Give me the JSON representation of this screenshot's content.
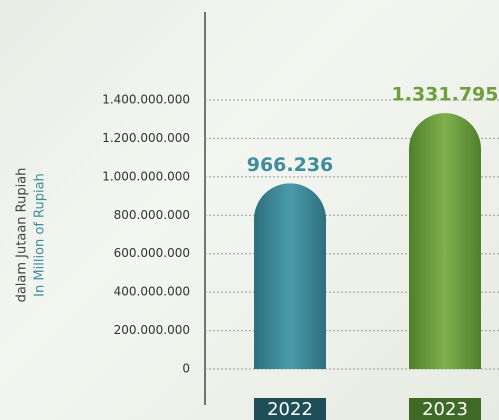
{
  "chart_data": {
    "type": "bar",
    "y_labels": [
      "dalam Jutaan Rupiah",
      "In Million of Rupiah"
    ],
    "categories": [
      "2022",
      "2023"
    ],
    "values": [
      966236000,
      1331795000
    ],
    "value_labels": [
      "966.236",
      "1.331.795"
    ],
    "colors": [
      "#3f8d9c",
      "#6e9e3e"
    ],
    "ylim": [
      0,
      1400000000
    ],
    "yticks": [
      0,
      {
        "value": 200000000,
        "label": "200.000.000"
      },
      {
        "value": 400000000,
        "label": "400.000.000"
      },
      {
        "value": 600000000,
        "label": "600.000.000"
      },
      {
        "value": 800000000,
        "label": "800.000.000"
      },
      {
        "value": 1000000000,
        "label": "1.000.000.000"
      },
      {
        "value": 1200000000,
        "label": "1.200.000.000"
      },
      {
        "value": 1400000000,
        "label": "1.400.000.000"
      }
    ],
    "grid": true
  }
}
